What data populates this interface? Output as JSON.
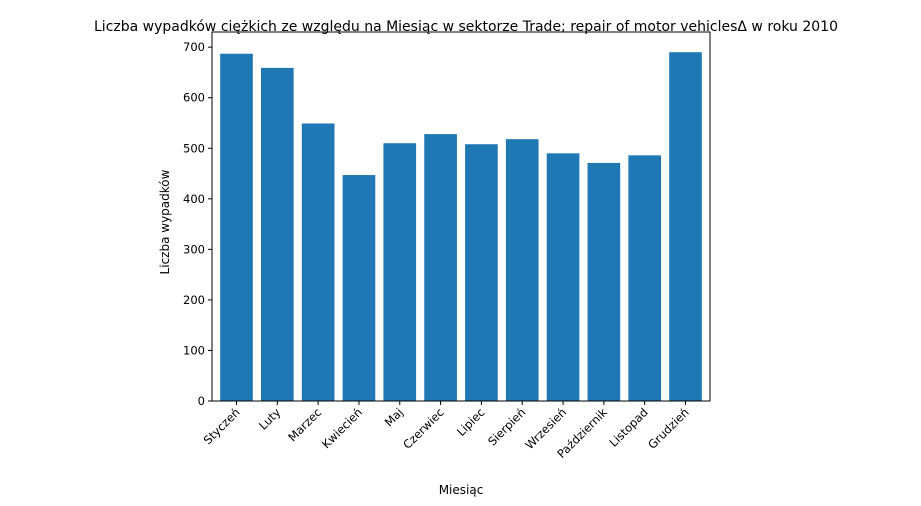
{
  "chart_data": {
    "type": "bar",
    "title": "Liczba wypadków ciężkich ze względu na Miesiąc w sektorze  Trade; repair of motor vehiclesΔ  w roku 2010",
    "xlabel": "Miesiąc",
    "ylabel": "Liczba wypadków",
    "categories": [
      "Styczeń",
      "Luty",
      "Marzec",
      "Kwiecień",
      "Maj",
      "Czerwiec",
      "Lipiec",
      "Sierpień",
      "Wrzesień",
      "Październik",
      "Listopad",
      "Grudzień"
    ],
    "values": [
      687,
      659,
      549,
      447,
      510,
      528,
      508,
      518,
      490,
      471,
      486,
      690
    ],
    "ylim": [
      0,
      730
    ],
    "yticks": [
      0,
      100,
      200,
      300,
      400,
      500,
      600,
      700
    ],
    "bar_color": "#1f77b4",
    "grid": false,
    "legend": "none"
  }
}
